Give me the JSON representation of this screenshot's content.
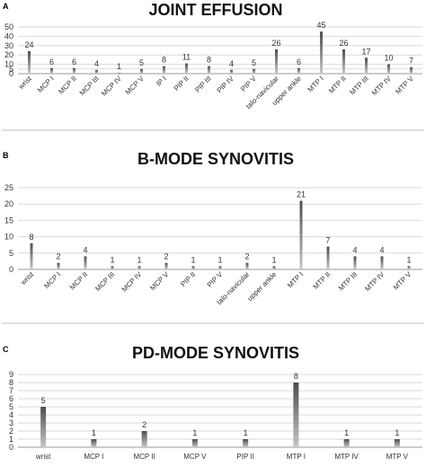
{
  "chart_data": [
    {
      "panel": "A",
      "type": "bar",
      "title": "JOINT EFFUSION",
      "ylim": [
        0,
        50
      ],
      "yticks": [
        0,
        5,
        10,
        20,
        30,
        40,
        50
      ],
      "grid": true,
      "categories": [
        "wrist",
        "MCP I",
        "MCP II",
        "MCP III",
        "MCP IV",
        "MCP V",
        "IP I",
        "PIP II",
        "PIP III",
        "PIP IV",
        "PIP V",
        "talo-navicular",
        "upper ankle",
        "MTP I",
        "MTP II",
        "MTP III",
        "MTP IV",
        "MTP V"
      ],
      "values": [
        24,
        6,
        6,
        4,
        1,
        5,
        8,
        11,
        8,
        4,
        5,
        26,
        6,
        45,
        26,
        17,
        10,
        7
      ]
    },
    {
      "panel": "B",
      "type": "bar",
      "title": "B-MODE SYNOVITIS",
      "ylim": [
        0,
        25
      ],
      "yticks": [
        0,
        5,
        10,
        15,
        20,
        25
      ],
      "grid": true,
      "categories": [
        "wrist",
        "MCP I",
        "MCP II",
        "MCP III",
        "MCP IV",
        "MCP V",
        "PIP II",
        "PIP V",
        "talo-navicular",
        "upper ankle",
        "MTP I",
        "MTP II",
        "MTP III",
        "MTP IV",
        "MTP V"
      ],
      "values": [
        8,
        2,
        4,
        1,
        1,
        2,
        1,
        1,
        2,
        1,
        21,
        7,
        4,
        4,
        1
      ]
    },
    {
      "panel": "C",
      "type": "bar",
      "title": "PD-MODE SYNOVITIS",
      "ylim": [
        0,
        9
      ],
      "yticks": [
        0,
        1,
        2,
        3,
        4,
        5,
        6,
        7,
        8,
        9
      ],
      "grid": true,
      "categories": [
        "wrist",
        "MCP I",
        "MCP II",
        "MCP V",
        "PIP II",
        "MTP I",
        "MTP IV",
        "MTP V"
      ],
      "values": [
        5,
        1,
        2,
        1,
        1,
        8,
        1,
        1
      ]
    }
  ],
  "colors": {
    "bar_dark": "#4d4d4d",
    "bar_light": "#c8c8c8"
  }
}
